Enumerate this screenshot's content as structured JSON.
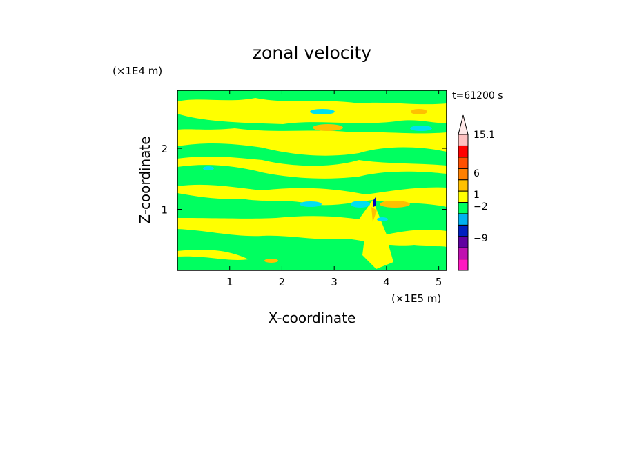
{
  "chart_data": {
    "type": "heatmap",
    "title": "zonal velocity",
    "xlabel": "X-coordinate",
    "ylabel": "Z-coordinate",
    "x_scale_label": "(×1E5 m)",
    "y_scale_label": "(×1E4 m)",
    "time_label": "t=61200 s",
    "xlim": [
      0,
      5.15
    ],
    "ylim": [
      0,
      2.95
    ],
    "x_ticks": [
      "1",
      "2",
      "3",
      "4",
      "5"
    ],
    "y_ticks": [
      "1",
      "2"
    ],
    "colorbar": {
      "labels": [
        "15.1",
        "6",
        "1",
        "−2",
        "−9"
      ],
      "colors": [
        "#ff18c0",
        "#c010b0",
        "#6000a0",
        "#0020c0",
        "#00b0f0",
        "#00ff60",
        "#ffff00",
        "#ffc000",
        "#ff8000",
        "#ff5000",
        "#ff0000",
        "#ffc0c0",
        "#ffe8e8"
      ]
    },
    "field_colors": {
      "positive_weak": "#ffff00",
      "negative_weak": "#00ff60",
      "positive_mid": "#ffc000",
      "negative_mid": "#00e0f0",
      "negative_strong": "#0000c0"
    }
  }
}
